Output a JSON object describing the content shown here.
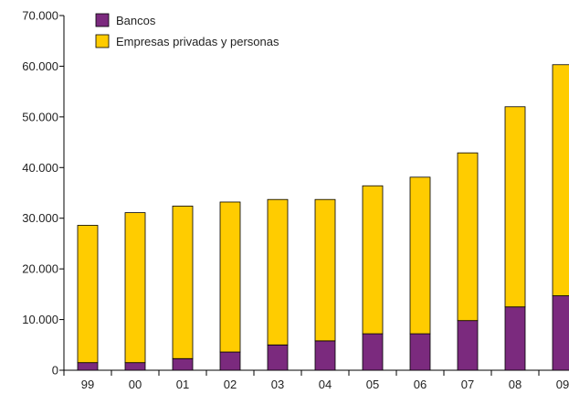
{
  "chart_data": {
    "type": "bar",
    "stacked": true,
    "categories": [
      "99",
      "00",
      "01",
      "02",
      "03",
      "04",
      "05",
      "06",
      "07",
      "08",
      "09"
    ],
    "series": [
      {
        "name": "Bancos",
        "color": "#7B2A7E",
        "values": [
          1500,
          1500,
          2300,
          3600,
          5000,
          5800,
          7200,
          7200,
          9800,
          12500,
          14700
        ]
      },
      {
        "name": "Empresas privadas y personas",
        "color": "#FFCC00",
        "values": [
          27100,
          29600,
          30100,
          29600,
          28700,
          27900,
          29200,
          30900,
          33100,
          39500,
          45600
        ]
      }
    ],
    "y_ticks": [
      "0",
      "10.000",
      "20.000",
      "30.000",
      "40.000",
      "50.000",
      "60.000",
      "70.000"
    ],
    "ylim": [
      0,
      70000
    ],
    "legend_position": "top-left",
    "grid": false
  }
}
